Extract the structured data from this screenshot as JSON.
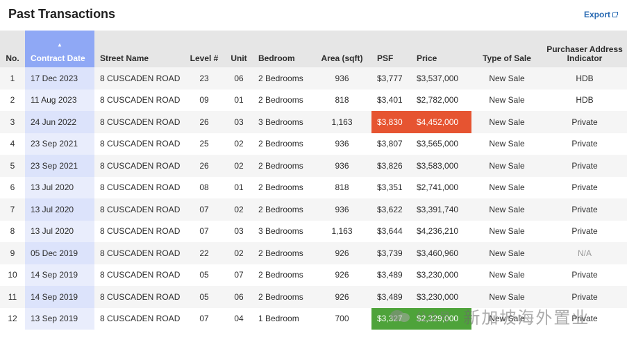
{
  "header": {
    "title": "Past Transactions",
    "export_label": "Export"
  },
  "table": {
    "columns": [
      "No.",
      "Contract Date",
      "Street Name",
      "Level #",
      "Unit",
      "Bedroom",
      "Area (sqft)",
      "PSF",
      "Price",
      "Type of Sale",
      "Purchaser Address",
      "Indicator"
    ],
    "sorted_column": "Contract Date",
    "rows": [
      [
        "1",
        "17 Dec 2023",
        "8 CUSCADEN ROAD",
        "23",
        "06",
        "2 Bedrooms",
        "936",
        "$3,777",
        "$3,537,000",
        "New Sale",
        "HDB"
      ],
      [
        "2",
        "11 Aug 2023",
        "8 CUSCADEN ROAD",
        "09",
        "01",
        "2 Bedrooms",
        "818",
        "$3,401",
        "$2,782,000",
        "New Sale",
        "HDB"
      ],
      [
        "3",
        "24 Jun 2022",
        "8 CUSCADEN ROAD",
        "26",
        "03",
        "3 Bedrooms",
        "1,163",
        "$3,830",
        "$4,452,000",
        "New Sale",
        "Private"
      ],
      [
        "4",
        "23 Sep 2021",
        "8 CUSCADEN ROAD",
        "25",
        "02",
        "2 Bedrooms",
        "936",
        "$3,807",
        "$3,565,000",
        "New Sale",
        "Private"
      ],
      [
        "5",
        "23 Sep 2021",
        "8 CUSCADEN ROAD",
        "26",
        "02",
        "2 Bedrooms",
        "936",
        "$3,826",
        "$3,583,000",
        "New Sale",
        "Private"
      ],
      [
        "6",
        "13 Jul 2020",
        "8 CUSCADEN ROAD",
        "08",
        "01",
        "2 Bedrooms",
        "818",
        "$3,351",
        "$2,741,000",
        "New Sale",
        "Private"
      ],
      [
        "7",
        "13 Jul 2020",
        "8 CUSCADEN ROAD",
        "07",
        "02",
        "2 Bedrooms",
        "936",
        "$3,622",
        "$3,391,740",
        "New Sale",
        "Private"
      ],
      [
        "8",
        "13 Jul 2020",
        "8 CUSCADEN ROAD",
        "07",
        "03",
        "3 Bedrooms",
        "1,163",
        "$3,644",
        "$4,236,210",
        "New Sale",
        "Private"
      ],
      [
        "9",
        "05 Dec 2019",
        "8 CUSCADEN ROAD",
        "22",
        "02",
        "2 Bedrooms",
        "926",
        "$3,739",
        "$3,460,960",
        "New Sale",
        "N/A"
      ],
      [
        "10",
        "14 Sep 2019",
        "8 CUSCADEN ROAD",
        "05",
        "07",
        "2 Bedrooms",
        "926",
        "$3,489",
        "$3,230,000",
        "New Sale",
        "Private"
      ],
      [
        "11",
        "14 Sep 2019",
        "8 CUSCADEN ROAD",
        "05",
        "06",
        "2 Bedrooms",
        "926",
        "$3,489",
        "$3,230,000",
        "New Sale",
        "Private"
      ],
      [
        "12",
        "13 Sep 2019",
        "8 CUSCADEN ROAD",
        "07",
        "04",
        "1 Bedroom",
        "700",
        "$3,327",
        "$2,329,000",
        "New Sale",
        "Private"
      ]
    ],
    "highlights": {
      "max_row": 3,
      "max_color": "#e65431",
      "min_row": 12,
      "min_color": "#4ea33a"
    }
  },
  "watermark": {
    "small": "公众号 ·",
    "big": "新加坡海外置业"
  },
  "colors": {
    "sorted_header": "#8fa8f5",
    "link": "#2a6bb3"
  }
}
